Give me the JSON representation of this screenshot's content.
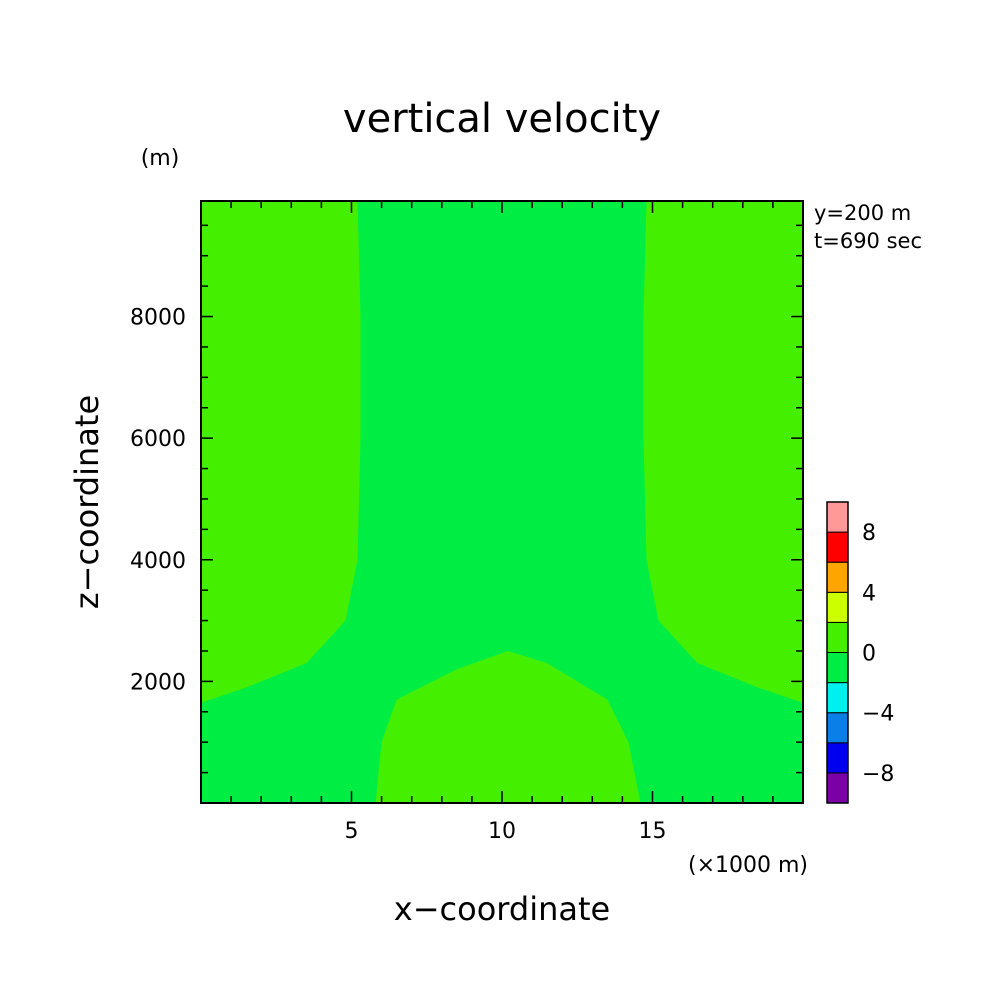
{
  "chart_data": {
    "type": "heatmap",
    "title": "vertical velocity",
    "xlabel": "x−coordinate",
    "ylabel": "z−coordinate",
    "x_unit": "(×1000 m)",
    "y_unit": "(m)",
    "info_lines": [
      "y=200 m",
      "t=690 sec"
    ],
    "xlim": [
      0,
      20
    ],
    "ylim": [
      0,
      9900
    ],
    "x_ticks": [
      5,
      10,
      15
    ],
    "y_ticks": [
      2000,
      4000,
      6000,
      8000
    ],
    "colorbar": {
      "levels": [
        -10,
        -8,
        -6,
        -4,
        -2,
        0,
        2,
        4,
        6,
        8,
        10
      ],
      "labels": [
        "8",
        "4",
        "0",
        "−4",
        "−8"
      ],
      "label_values": [
        8,
        4,
        0,
        -4,
        -8
      ],
      "colors": [
        "#7b00a8",
        "#0000ee",
        "#0a7fe8",
        "#00f0f0",
        "#00ee44",
        "#44f000",
        "#ccff00",
        "#ffa500",
        "#ff0000",
        "#ff9999"
      ]
    },
    "field_colors": {
      "background": "#00ee44",
      "region": "#44f000"
    },
    "regions": [
      {
        "name": "left-positive",
        "interval": [
          0,
          2
        ],
        "points": [
          [
            0,
            9900
          ],
          [
            5.2,
            9900
          ],
          [
            5.3,
            8000
          ],
          [
            5.3,
            6000
          ],
          [
            5.2,
            4000
          ],
          [
            4.8,
            3000
          ],
          [
            3.5,
            2300
          ],
          [
            1.5,
            1900
          ],
          [
            0,
            1650
          ]
        ]
      },
      {
        "name": "right-positive",
        "interval": [
          0,
          2
        ],
        "points": [
          [
            20,
            9900
          ],
          [
            14.8,
            9900
          ],
          [
            14.7,
            8000
          ],
          [
            14.7,
            6000
          ],
          [
            14.8,
            4000
          ],
          [
            15.2,
            3000
          ],
          [
            16.5,
            2300
          ],
          [
            18.5,
            1900
          ],
          [
            20,
            1650
          ]
        ]
      },
      {
        "name": "bottom-positive",
        "interval": [
          0,
          2
        ],
        "points": [
          [
            5.8,
            0
          ],
          [
            6.0,
            1000
          ],
          [
            6.5,
            1700
          ],
          [
            8.5,
            2200
          ],
          [
            10.2,
            2500
          ],
          [
            11.5,
            2300
          ],
          [
            13.5,
            1700
          ],
          [
            14.2,
            1000
          ],
          [
            14.6,
            0
          ]
        ]
      }
    ]
  }
}
